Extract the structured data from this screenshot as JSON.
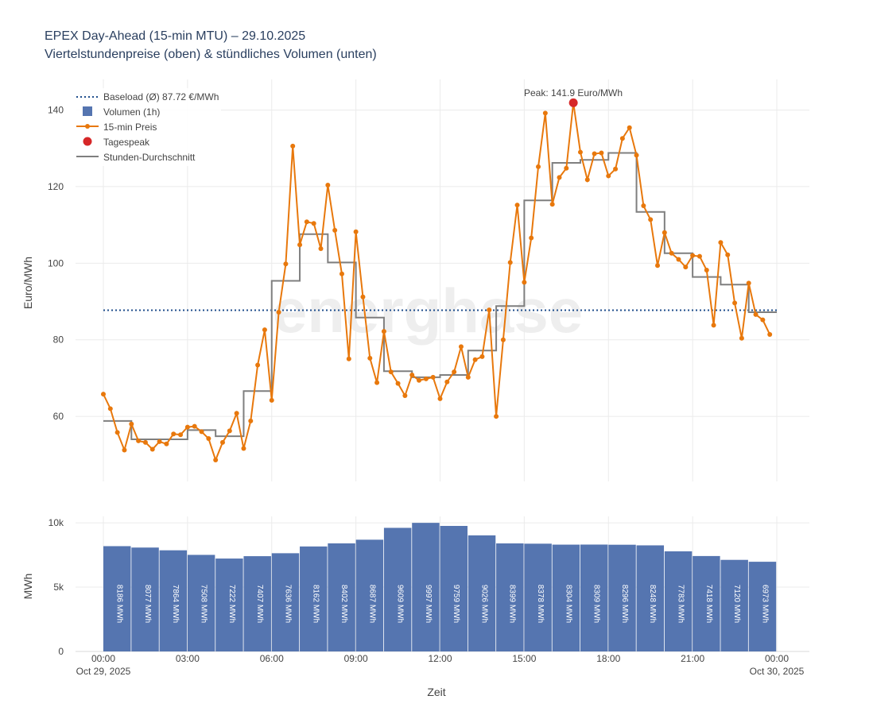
{
  "chart_data": [
    {
      "type": "line",
      "title": "EPEX Day-Ahead (15-min MTU) – 29.10.2025",
      "subtitle": "Viertelstundenpreise (oben) & stündliches Volumen (unten)",
      "ylabel": "Euro/MWh",
      "ylim": [
        43,
        148
      ],
      "yticks": [
        "60",
        "80",
        "100",
        "120",
        "140"
      ],
      "grid": true,
      "legend_position": "top-left",
      "legend": {
        "baseload": "Baseload (Ø) 87.72 €/MWh",
        "volume": "Volumen (1h)",
        "price": "15-min Preis",
        "peak": "Tagespeak",
        "hourly": "Stunden-Durchschnitt"
      },
      "baseload": 87.72,
      "peak": {
        "hour": 16.75,
        "value": 141.9,
        "label": "Peak: 141.9 Euro/MWh"
      },
      "series": [
        {
          "name": "15-min Preis",
          "values": [
            65.8,
            62.0,
            55.8,
            51.2,
            58.0,
            53.6,
            53.2,
            51.4,
            53.4,
            52.8,
            55.4,
            55.2,
            57.2,
            57.4,
            56.0,
            54.2,
            48.6,
            53.2,
            56.2,
            60.8,
            51.6,
            58.8,
            73.4,
            82.6,
            64.2,
            87.2,
            99.8,
            130.6,
            104.8,
            110.8,
            110.4,
            103.8,
            120.4,
            108.6,
            97.2,
            75.0,
            108.2,
            91.2,
            75.2,
            68.8,
            82.2,
            71.6,
            68.6,
            65.4,
            70.8,
            69.4,
            69.8,
            70.2,
            64.6,
            69.0,
            71.6,
            78.2,
            70.2,
            74.8,
            75.6,
            87.8,
            60.0,
            80.0,
            100.2,
            115.2,
            95.0,
            106.6,
            125.2,
            139.2,
            115.4,
            122.4,
            124.8,
            141.9,
            129.0,
            121.8,
            128.6,
            128.8,
            122.8,
            124.6,
            132.6,
            135.4,
            128.2,
            115.0,
            111.4,
            99.4,
            108.0,
            102.6,
            101.0,
            99.0,
            102.0,
            101.8,
            98.2,
            83.8,
            105.4,
            102.2,
            89.6,
            80.4,
            94.8,
            86.6,
            85.2,
            81.4
          ]
        },
        {
          "name": "Stunden-Durchschnitt",
          "values": [
            58.8,
            54.0,
            54.0,
            56.4,
            54.8,
            66.6,
            95.4,
            107.6,
            100.2,
            85.8,
            71.8,
            70.2,
            70.8,
            77.2,
            88.8,
            116.4,
            126.2,
            127.0,
            128.8,
            113.4,
            102.6,
            96.4,
            94.4,
            87.2
          ]
        }
      ]
    },
    {
      "type": "bar",
      "xlabel": "Zeit",
      "ylabel": "MWh",
      "ylim": [
        0,
        10500
      ],
      "yticks": [
        "0",
        "5k",
        "10k"
      ],
      "categories": [
        "00:00",
        "01:00",
        "02:00",
        "03:00",
        "04:00",
        "05:00",
        "06:00",
        "07:00",
        "08:00",
        "09:00",
        "10:00",
        "11:00",
        "12:00",
        "13:00",
        "14:00",
        "15:00",
        "16:00",
        "17:00",
        "18:00",
        "19:00",
        "20:00",
        "21:00",
        "22:00",
        "23:00"
      ],
      "values": [
        8186,
        8077,
        7864,
        7508,
        7222,
        7407,
        7636,
        8162,
        8402,
        8687,
        9609,
        9997,
        9759,
        9026,
        8399,
        8378,
        8304,
        8309,
        8296,
        8248,
        7783,
        7418,
        7120,
        6973
      ],
      "labels": [
        "8186 MWh",
        "8077 MWh",
        "7864 MWh",
        "7508 MWh",
        "7222 MWh",
        "7407 MWh",
        "7636 MWh",
        "8162 MWh",
        "8402 MWh",
        "8687 MWh",
        "9609 MWh",
        "9997 MWh",
        "9759 MWh",
        "9026 MWh",
        "8399 MWh",
        "8378 MWh",
        "8304 MWh",
        "8309 MWh",
        "8296 MWh",
        "8248 MWh",
        "7783 MWh",
        "7418 MWh",
        "7120 MWh",
        "6973 MWh"
      ],
      "xticks": [
        {
          "hour": 0,
          "label": "00:00",
          "sub": "Oct 29, 2025"
        },
        {
          "hour": 3,
          "label": "03:00",
          "sub": ""
        },
        {
          "hour": 6,
          "label": "06:00",
          "sub": ""
        },
        {
          "hour": 9,
          "label": "09:00",
          "sub": ""
        },
        {
          "hour": 12,
          "label": "12:00",
          "sub": ""
        },
        {
          "hour": 15,
          "label": "15:00",
          "sub": ""
        },
        {
          "hour": 18,
          "label": "18:00",
          "sub": ""
        },
        {
          "hour": 21,
          "label": "21:00",
          "sub": ""
        },
        {
          "hour": 24,
          "label": "00:00",
          "sub": "Oct 30, 2025"
        }
      ]
    }
  ],
  "colors": {
    "price": "#e8780c",
    "hourly": "#7f7f7f",
    "baseload": "#1f4e8c",
    "bar": "#5575b0",
    "peak": "#d62728",
    "grid": "#ebebeb"
  },
  "watermark": "energhase"
}
